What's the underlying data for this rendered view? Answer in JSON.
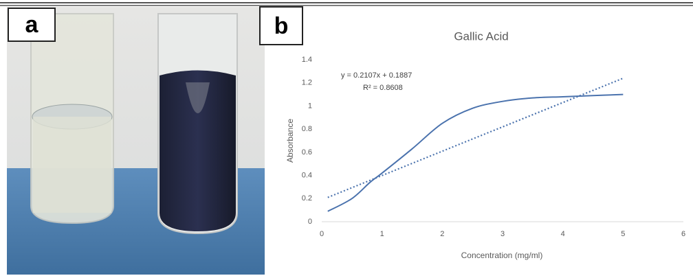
{
  "panels": {
    "a": "a",
    "b": "b"
  },
  "chart_data": {
    "type": "line",
    "title": "Gallic Acid",
    "x_label": "Concentration (mg/ml)",
    "y_label": "Absorbance",
    "annotations": [
      "y = 0.2107x + 0.1887",
      "R² = 0.8608"
    ],
    "xlim": [
      0,
      6
    ],
    "xticks": [
      0,
      1,
      2,
      3,
      4,
      5,
      6
    ],
    "ylim": [
      0,
      1.4
    ],
    "yticks": [
      0,
      0.2,
      0.4,
      0.6,
      0.8,
      1,
      1.2,
      1.4
    ],
    "grid": false,
    "series": [
      {
        "x": [
          0.1,
          0.5,
          0.8,
          1,
          1.5,
          2,
          2.5,
          3,
          3.5,
          4,
          4.5,
          5
        ],
        "values": [
          0.09,
          0.2,
          0.34,
          0.42,
          0.63,
          0.85,
          0.98,
          1.04,
          1.07,
          1.08,
          1.09,
          1.1
        ],
        "color": "#4a72ad",
        "style": "solid"
      },
      {
        "x": [
          0.1,
          5
        ],
        "values": [
          0.21,
          1.24
        ],
        "color": "#4a72ad",
        "style": "dotted"
      }
    ]
  }
}
